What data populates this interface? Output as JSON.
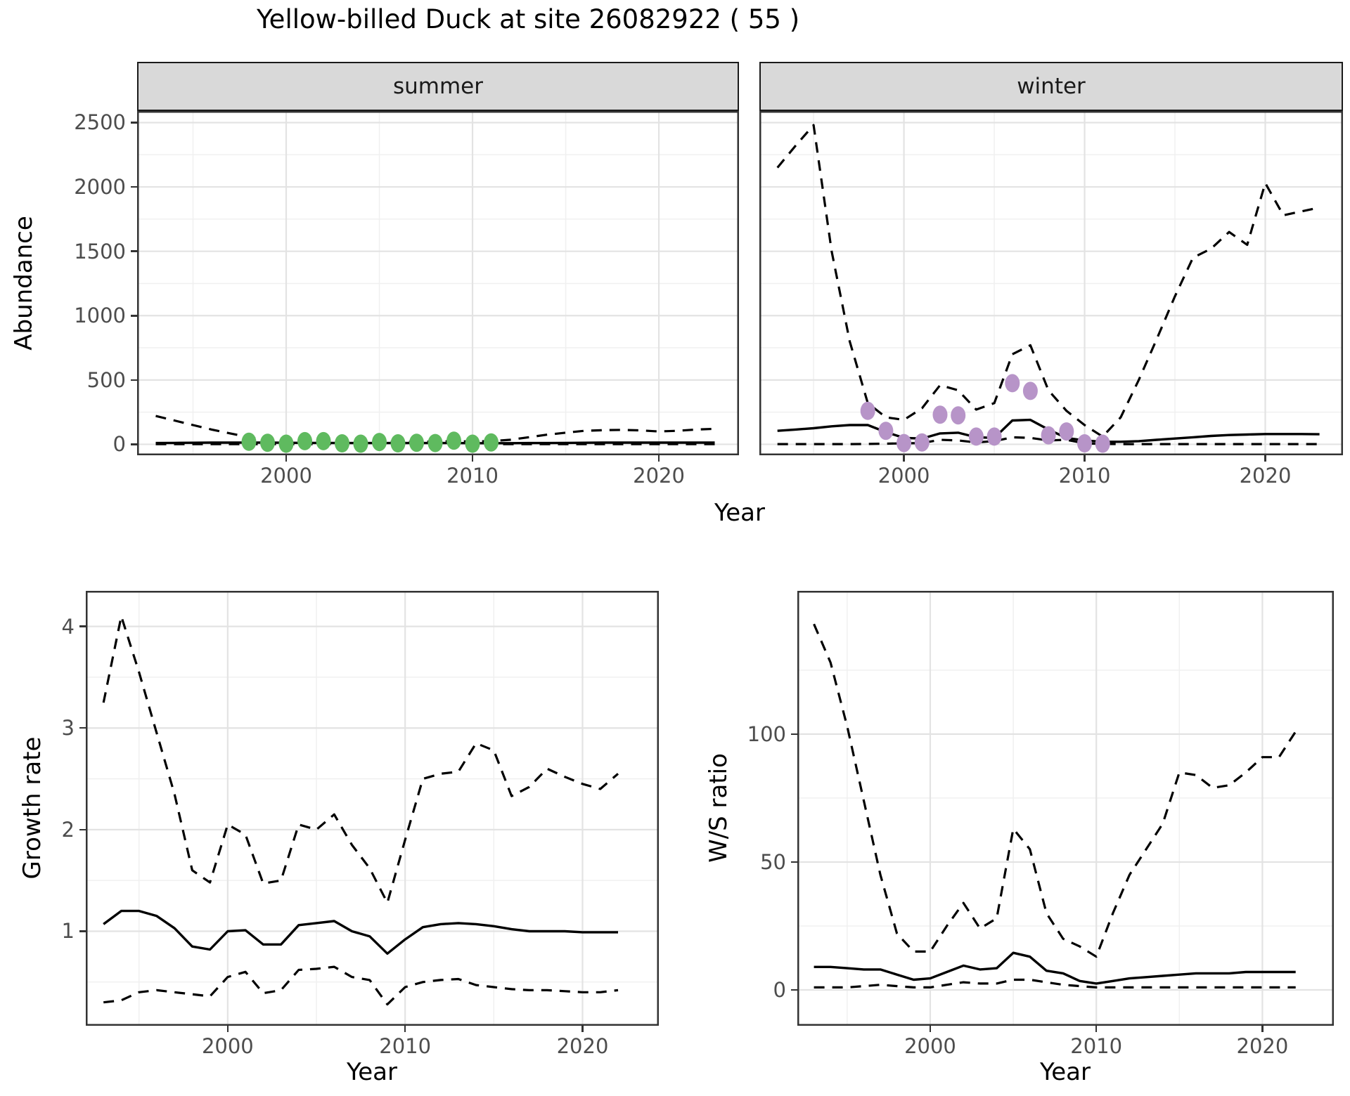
{
  "title": "Yellow-billed Duck at site 26082922 ( 55 )",
  "shared": {
    "x_label": "Year",
    "xlim": [
      1992,
      2024.3
    ],
    "xticks": [
      2000,
      2010,
      2020
    ],
    "xminor": [
      1995,
      2005,
      2015
    ]
  },
  "colors": {
    "summer_points": "#5fba5f",
    "winter_points": "#b794c8",
    "strip_bg": "#d9d9d9",
    "panel_bg": "#ffffff",
    "panel_border": "#333333",
    "grid_major": "#e3e3e3",
    "grid_minor": "#f0f0f0",
    "axis_text": "#4d4d4d",
    "line": "#000000"
  },
  "chart_data": [
    {
      "id": "summer",
      "type": "line",
      "facet": "summer",
      "ylabel": "Abundance",
      "ylim": [
        -85,
        2590
      ],
      "yticks": [
        0,
        500,
        1000,
        1500,
        2000,
        2500
      ],
      "yminor": [
        250,
        750,
        1250,
        1750,
        2250
      ],
      "x": [
        1993,
        1994,
        1995,
        1996,
        1997,
        1998,
        1999,
        2000,
        2001,
        2002,
        2003,
        2004,
        2005,
        2006,
        2007,
        2008,
        2009,
        2010,
        2011,
        2012,
        2013,
        2014,
        2015,
        2016,
        2017,
        2018,
        2019,
        2020,
        2021,
        2022,
        2023
      ],
      "series": [
        {
          "name": "upper_ci",
          "style": "dashed",
          "values": [
            220,
            185,
            150,
            115,
            85,
            55,
            35,
            25,
            22,
            25,
            20,
            20,
            22,
            20,
            20,
            22,
            25,
            22,
            25,
            35,
            55,
            75,
            90,
            105,
            110,
            112,
            108,
            100,
            105,
            115,
            120
          ]
        },
        {
          "name": "estimate",
          "style": "solid",
          "values": [
            10,
            11,
            12,
            13,
            13,
            14,
            13,
            12,
            11,
            11,
            10,
            10,
            10,
            10,
            10,
            10,
            10,
            9,
            9,
            9,
            10,
            10,
            11,
            12,
            13,
            13,
            13,
            13,
            13,
            13,
            13
          ]
        },
        {
          "name": "lower_ci",
          "style": "dashed",
          "values": [
            2,
            2,
            2,
            2,
            2,
            1,
            1,
            1,
            1,
            1,
            1,
            1,
            1,
            1,
            1,
            1,
            1,
            1,
            1,
            1,
            1,
            2,
            2,
            2,
            2,
            2,
            2,
            2,
            2,
            2,
            2
          ]
        }
      ],
      "points": {
        "name": "observed-counts-summer",
        "color_key": "summer_points",
        "x": [
          1998,
          1999,
          2000,
          2001,
          2002,
          2003,
          2004,
          2005,
          2006,
          2007,
          2008,
          2009,
          2010,
          2011
        ],
        "y": [
          20,
          12,
          5,
          25,
          25,
          8,
          5,
          18,
          8,
          12,
          10,
          28,
          5,
          15
        ]
      }
    },
    {
      "id": "winter",
      "type": "line",
      "facet": "winter",
      "ylabel": "Abundance",
      "ylim": [
        -85,
        2590
      ],
      "yticks": [
        0,
        500,
        1000,
        1500,
        2000,
        2500
      ],
      "yminor": [
        250,
        750,
        1250,
        1750,
        2250
      ],
      "x": [
        1993,
        1994,
        1995,
        1996,
        1997,
        1998,
        1999,
        2000,
        2001,
        2002,
        2003,
        2004,
        2005,
        2006,
        2007,
        2008,
        2009,
        2010,
        2011,
        2012,
        2013,
        2014,
        2015,
        2016,
        2017,
        2018,
        2019,
        2020,
        2021,
        2022,
        2023
      ],
      "series": [
        {
          "name": "upper_ci",
          "style": "dashed",
          "values": [
            2150,
            2320,
            2480,
            1500,
            800,
            320,
            210,
            190,
            280,
            460,
            420,
            270,
            320,
            700,
            770,
            420,
            260,
            150,
            60,
            210,
            500,
            820,
            1150,
            1450,
            1520,
            1650,
            1550,
            2030,
            1780,
            1810,
            1840
          ]
        },
        {
          "name": "estimate",
          "style": "solid",
          "values": [
            105,
            115,
            125,
            140,
            150,
            150,
            95,
            50,
            45,
            85,
            90,
            55,
            50,
            185,
            190,
            115,
            50,
            30,
            20,
            20,
            25,
            35,
            45,
            55,
            65,
            72,
            76,
            80,
            80,
            80,
            78
          ]
        },
        {
          "name": "lower_ci",
          "style": "dashed",
          "values": [
            2,
            2,
            2,
            2,
            2,
            3,
            5,
            8,
            10,
            35,
            30,
            15,
            25,
            55,
            50,
            30,
            35,
            8,
            3,
            2,
            2,
            2,
            2,
            2,
            2,
            2,
            2,
            2,
            2,
            2,
            2
          ]
        }
      ],
      "points": {
        "name": "observed-counts-winter",
        "color_key": "winter_points",
        "x": [
          1998,
          1999,
          2000,
          2001,
          2002,
          2003,
          2004,
          2005,
          2006,
          2007,
          2008,
          2009,
          2010,
          2011
        ],
        "y": [
          260,
          105,
          10,
          15,
          230,
          225,
          60,
          60,
          475,
          415,
          70,
          100,
          8,
          5
        ]
      }
    },
    {
      "id": "growth",
      "type": "line",
      "ylabel": "Growth rate",
      "ylim": [
        0.07,
        4.35
      ],
      "yticks": [
        1,
        2,
        3,
        4
      ],
      "yminor": [
        0.5,
        1.5,
        2.5,
        3.5
      ],
      "x": [
        1993,
        1994,
        1995,
        1996,
        1997,
        1998,
        1999,
        2000,
        2001,
        2002,
        2003,
        2004,
        2005,
        2006,
        2007,
        2008,
        2009,
        2010,
        2011,
        2012,
        2013,
        2014,
        2015,
        2016,
        2017,
        2018,
        2019,
        2020,
        2021,
        2022
      ],
      "series": [
        {
          "name": "upper_ci",
          "style": "dashed",
          "values": [
            3.25,
            4.1,
            3.55,
            2.95,
            2.35,
            1.6,
            1.48,
            2.05,
            1.95,
            1.47,
            1.5,
            2.05,
            2.0,
            2.15,
            1.85,
            1.62,
            1.28,
            1.9,
            2.5,
            2.55,
            2.57,
            2.85,
            2.78,
            2.33,
            2.42,
            2.6,
            2.52,
            2.45,
            2.4,
            2.55
          ]
        },
        {
          "name": "estimate",
          "style": "solid",
          "values": [
            1.07,
            1.2,
            1.2,
            1.15,
            1.03,
            0.85,
            0.82,
            1.0,
            1.01,
            0.87,
            0.87,
            1.06,
            1.08,
            1.1,
            1.0,
            0.95,
            0.78,
            0.92,
            1.04,
            1.07,
            1.08,
            1.07,
            1.05,
            1.02,
            1.0,
            1.0,
            1.0,
            0.99,
            0.99,
            0.99
          ]
        },
        {
          "name": "lower_ci",
          "style": "dashed",
          "values": [
            0.3,
            0.32,
            0.4,
            0.42,
            0.4,
            0.38,
            0.36,
            0.55,
            0.6,
            0.39,
            0.42,
            0.62,
            0.63,
            0.65,
            0.55,
            0.52,
            0.28,
            0.45,
            0.5,
            0.52,
            0.53,
            0.47,
            0.45,
            0.43,
            0.42,
            0.42,
            0.41,
            0.4,
            0.4,
            0.42
          ]
        }
      ]
    },
    {
      "id": "ws",
      "type": "line",
      "ylabel": "W/S ratio",
      "ylim": [
        -14,
        156
      ],
      "yticks": [
        0,
        50,
        100
      ],
      "yminor": [
        25,
        75,
        125
      ],
      "x": [
        1993,
        1994,
        1995,
        1996,
        1997,
        1998,
        1999,
        2000,
        2001,
        2002,
        2003,
        2004,
        2005,
        2006,
        2007,
        2008,
        2009,
        2010,
        2011,
        2012,
        2013,
        2014,
        2015,
        2016,
        2017,
        2018,
        2019,
        2020,
        2021,
        2022
      ],
      "series": [
        {
          "name": "upper_ci",
          "style": "dashed",
          "values": [
            143,
            128,
            103,
            74,
            45,
            22,
            15,
            15,
            25,
            34,
            24,
            28,
            63,
            55,
            30,
            20,
            17,
            13,
            30,
            45,
            55,
            65,
            85,
            84,
            79,
            80,
            85,
            91,
            91,
            101
          ]
        },
        {
          "name": "estimate",
          "style": "solid",
          "values": [
            9,
            9,
            8.5,
            8,
            8,
            6,
            4,
            4.5,
            7,
            9.5,
            8,
            8.5,
            14.5,
            13,
            7.5,
            6.5,
            3.5,
            2.5,
            3.5,
            4.5,
            5,
            5.5,
            6,
            6.5,
            6.5,
            6.5,
            7,
            7,
            7,
            7
          ]
        },
        {
          "name": "lower_ci",
          "style": "dashed",
          "values": [
            1,
            1,
            1,
            1.5,
            2,
            1.5,
            1,
            1,
            2,
            3,
            2.5,
            2.5,
            4,
            4,
            3,
            2,
            1.5,
            1,
            1,
            1,
            1,
            1,
            1,
            1,
            1,
            1,
            1,
            1,
            1,
            1
          ]
        }
      ]
    }
  ]
}
